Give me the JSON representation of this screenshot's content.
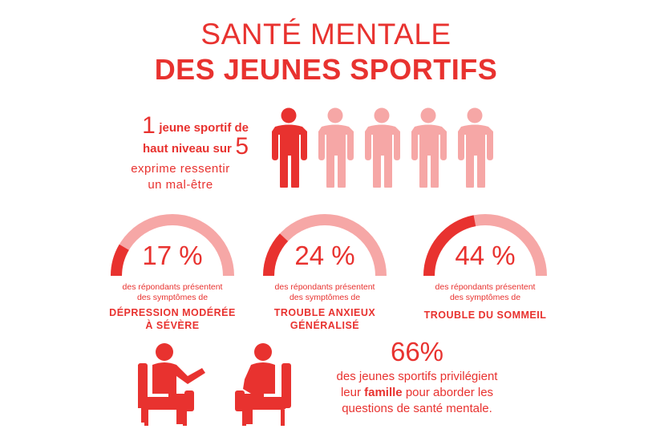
{
  "title": {
    "line1": "SANTÉ MENTALE",
    "line2": "DES JEUNES SPORTIFS"
  },
  "intro": {
    "number1": "1",
    "text1": "jeune sportif de",
    "text2": "haut niveau sur",
    "number2": "5",
    "sub_line1": "exprime ressentir",
    "sub_line2": "un mal-être",
    "people_total": 5,
    "people_highlighted": 1
  },
  "stats": [
    {
      "value": 17,
      "percent_label": "17 %",
      "desc_line1": "des répondants présentent",
      "desc_line2": "des symptômes de",
      "condition_line1": "DÉPRESSION MODÉRÉE",
      "condition_line2": "À SÉVÈRE"
    },
    {
      "value": 24,
      "percent_label": "24 %",
      "desc_line1": "des répondants présentent",
      "desc_line2": "des symptômes de",
      "condition_line1": "TROUBLE ANXIEUX",
      "condition_line2": "GÉNÉRALISÉ"
    },
    {
      "value": 44,
      "percent_label": "44 %",
      "desc_line1": "des répondants présentent",
      "desc_line2": "des symptômes de",
      "condition_line1": "TROUBLE DU SOMMEIL",
      "condition_line2": ""
    }
  ],
  "family": {
    "percent_label": "66%",
    "line1": "des jeunes sportifs privilégient",
    "line2_pre": "leur ",
    "line2_bold": "famille",
    "line2_post": " pour aborder les",
    "line3": "questions de santé mentale."
  },
  "colors": {
    "primary": "#e8322f",
    "light": "#f6a7a6"
  },
  "icons": {
    "person": "person-icon",
    "armchair": "armchair-icon"
  }
}
